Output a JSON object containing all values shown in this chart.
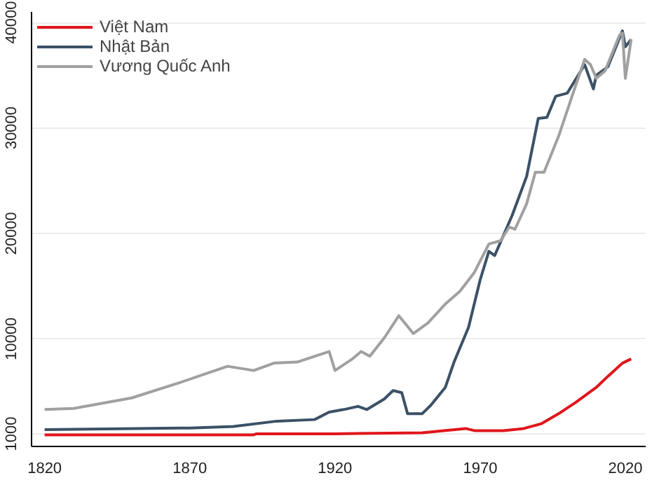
{
  "chart_data": {
    "type": "line",
    "xlim": [
      1815.5,
      2027
    ],
    "xticks": [
      1820,
      1870,
      1920,
      1970,
      2020
    ],
    "ylim": [
      -200,
      41000
    ],
    "yticks": [
      1000,
      10000,
      20000,
      30000,
      40000
    ],
    "grid": "y",
    "legend": "top left",
    "line_style": "solid",
    "series": [
      {
        "name": "Việt Nam",
        "color": "#e0161b",
        "x": [
          1820,
          1850,
          1892,
          1893,
          1920,
          1950,
          1965,
          1968,
          1978,
          1985,
          1991,
          1997,
          2003,
          2010,
          2014,
          2019,
          2022
        ],
        "values": [
          900,
          900,
          900,
          1000,
          1000,
          1100,
          1500,
          1300,
          1300,
          1500,
          1950,
          2900,
          4000,
          5400,
          6450,
          7700,
          8100
        ]
      },
      {
        "name": "Nhật Bản",
        "color": "#3b5166",
        "x": [
          1820,
          1870,
          1885,
          1900,
          1913,
          1918,
          1923,
          1928,
          1931,
          1937,
          1940,
          1943,
          1945,
          1950,
          1953,
          1958,
          1961,
          1966,
          1970,
          1973,
          1975,
          1981,
          1986,
          1990,
          1993,
          1996,
          2000,
          2006,
          2009,
          2010,
          2014,
          2019,
          2020,
          2022
        ],
        "values": [
          1400,
          1550,
          1700,
          2200,
          2350,
          3050,
          3300,
          3600,
          3300,
          4300,
          5100,
          4900,
          2900,
          2900,
          3700,
          5400,
          7800,
          11100,
          15600,
          18300,
          17900,
          21700,
          25400,
          30900,
          31000,
          33000,
          33300,
          36000,
          33700,
          35000,
          35800,
          39200,
          37700,
          38400
        ]
      },
      {
        "name": "Vương Quốc Anh",
        "color": "#a0a0a0",
        "x": [
          1820,
          1830,
          1842,
          1850,
          1866,
          1883,
          1892,
          1899,
          1907,
          1913,
          1918,
          1920,
          1926,
          1929,
          1932,
          1937,
          1942,
          1947,
          1952,
          1958,
          1963,
          1968,
          1973,
          1977,
          1980,
          1982,
          1986,
          1989,
          1992,
          1997,
          2002,
          2006,
          2008,
          2010,
          2013,
          2018,
          2019,
          2020,
          2022
        ],
        "values": [
          3300,
          3400,
          4000,
          4400,
          5800,
          7400,
          7000,
          7700,
          7800,
          8350,
          8800,
          7000,
          8100,
          8800,
          8350,
          10100,
          12200,
          10500,
          11500,
          13300,
          14500,
          16300,
          19000,
          19300,
          20600,
          20400,
          22800,
          25800,
          25800,
          29200,
          33300,
          36500,
          36000,
          34700,
          35400,
          38800,
          39000,
          34700,
          38400
        ]
      }
    ]
  }
}
